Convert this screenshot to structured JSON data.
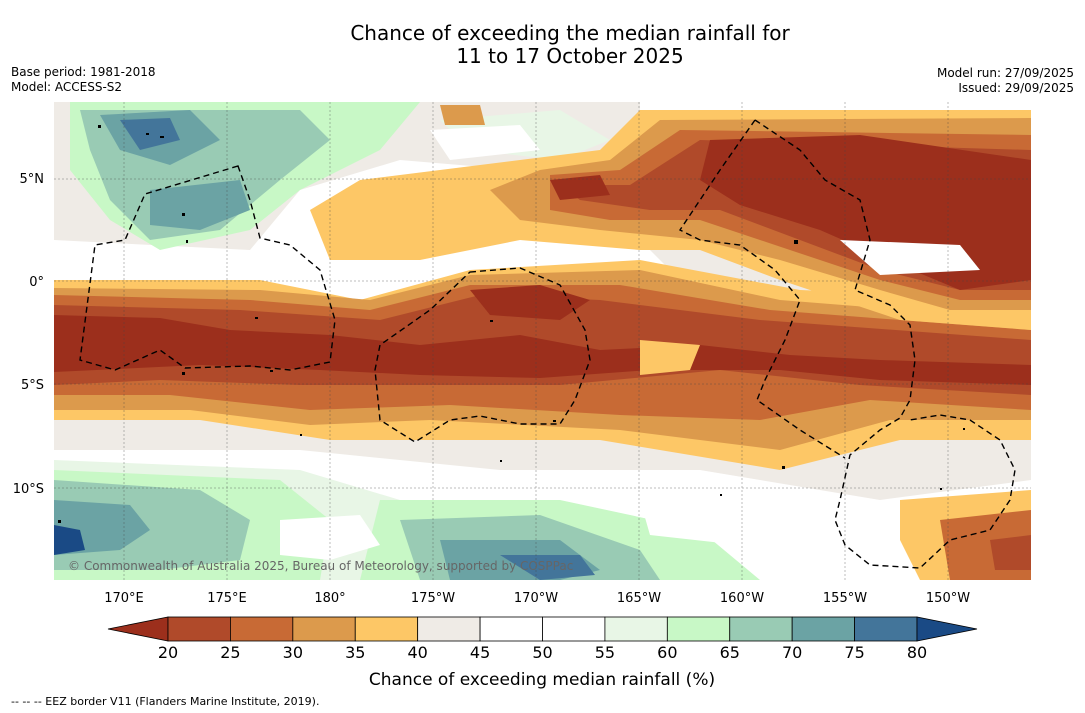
{
  "header": {
    "title_line1": "Chance of exceeding the median rainfall for",
    "title_line2": "11 to 17 October 2025"
  },
  "meta_left": {
    "base_period": "Base period: 1981-2018",
    "model": "Model: ACCESS-S2"
  },
  "meta_right": {
    "model_run": "Model run: 27/09/2025",
    "issued": "Issued: 29/09/2025"
  },
  "map": {
    "longitude_labels": [
      "170°E",
      "175°E",
      "180°",
      "175°W",
      "170°W",
      "165°W",
      "160°W",
      "155°W",
      "150°W"
    ],
    "latitude_labels": [
      "5°N",
      "0°",
      "5°S",
      "10°S"
    ],
    "attribution": "© Commonwealth of Australia 2025, Bureau of Meteorology, supported by COSPPac",
    "colors": {
      "c20": "#9c2f1c",
      "c25": "#b04a2a",
      "c30": "#c86a35",
      "c35": "#dc9a4c",
      "c40": "#fdc766",
      "c45": "#efebe6",
      "c60": "#e8f6e6",
      "c65": "#c8f8c6",
      "c70": "#99cbb4",
      "c75": "#6ba3a4",
      "c80": "#43759a",
      "cmax": "#1a4a85"
    }
  },
  "colorbar": {
    "ticks": [
      "20",
      "25",
      "30",
      "35",
      "40",
      "45",
      "50",
      "55",
      "60",
      "65",
      "70",
      "75",
      "80"
    ],
    "colors": [
      "#9c2f1c",
      "#b04a2a",
      "#c86a35",
      "#dc9a4c",
      "#fdc766",
      "#efebe6",
      "#ffffff",
      "#ffffff",
      "#e8f6e6",
      "#c8f8c6",
      "#99cbb4",
      "#6ba3a4",
      "#43759a",
      "#1a4a85"
    ],
    "label": "Chance of exceeding median rainfall (%)"
  },
  "footer": {
    "legend": "--  --  -- EEZ border V11 (Flanders Marine Institute, 2019)."
  }
}
